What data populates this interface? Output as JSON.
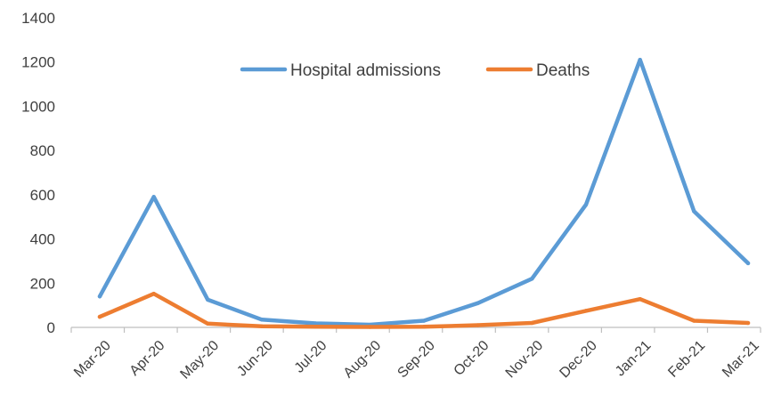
{
  "chart_data": {
    "type": "line",
    "categories": [
      "Mar-20",
      "Apr-20",
      "May-20",
      "Jun-20",
      "Jul-20",
      "Aug-20",
      "Sep-20",
      "Oct-20",
      "Nov-20",
      "Dec-20",
      "Jan-21",
      "Feb-21",
      "Mar-21"
    ],
    "series": [
      {
        "name": "Hospital admissions",
        "color": "#5B9BD5",
        "values": [
          140,
          590,
          125,
          35,
          18,
          12,
          30,
          110,
          220,
          555,
          1210,
          525,
          290
        ]
      },
      {
        "name": "Deaths",
        "color": "#ED7D31",
        "values": [
          48,
          152,
          17,
          5,
          3,
          2,
          3,
          10,
          20,
          75,
          128,
          30,
          20
        ]
      }
    ],
    "ylim": [
      0,
      1400
    ],
    "yticks": [
      0,
      200,
      400,
      600,
      800,
      1000,
      1200,
      1400
    ],
    "grid": false,
    "legend_position": "top-center"
  }
}
